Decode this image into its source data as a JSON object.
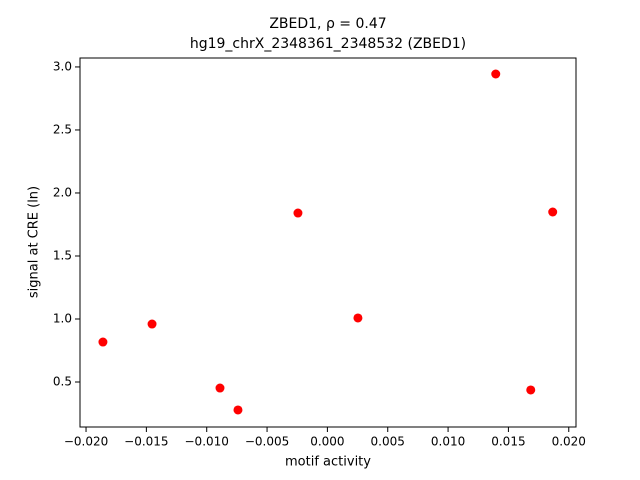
{
  "chart_data": {
    "type": "scatter",
    "title": "ZBED1, ρ = 0.47",
    "subtitle": "hg19_chrX_2348361_2348532 (ZBED1)",
    "x_label": "motif activity",
    "y_label": "signal at CRE (ln)",
    "color": "#ff0000",
    "x": [
      -0.0186,
      -0.01453,
      -0.0089,
      -0.00741,
      -0.00244,
      0.00253,
      0.01395,
      0.01685,
      0.01867
    ],
    "values": [
      0.817,
      0.96,
      0.452,
      0.278,
      1.841,
      1.008,
      2.944,
      0.437,
      1.849
    ],
    "xlim": [
      -0.0205,
      0.0206
    ],
    "ylim": [
      0.143,
      3.071
    ],
    "xticks": [
      {
        "value": -0.02,
        "label": "−0.020"
      },
      {
        "value": -0.015,
        "label": "−0.015"
      },
      {
        "value": -0.01,
        "label": "−0.010"
      },
      {
        "value": -0.005,
        "label": "−0.005"
      },
      {
        "value": 0,
        "label": "0.000"
      },
      {
        "value": 0.005,
        "label": "0.005"
      },
      {
        "value": 0.01,
        "label": "0.010"
      },
      {
        "value": 0.015,
        "label": "0.015"
      },
      {
        "value": 0.02,
        "label": "0.020"
      }
    ],
    "yticks": [
      {
        "value": 0.5,
        "label": "0.5"
      },
      {
        "value": 1,
        "label": "1.0"
      },
      {
        "value": 1.5,
        "label": "1.5"
      },
      {
        "value": 2,
        "label": "2.0"
      },
      {
        "value": 2.5,
        "label": "2.5"
      },
      {
        "value": 3,
        "label": "3.0"
      }
    ],
    "grid": false
  }
}
